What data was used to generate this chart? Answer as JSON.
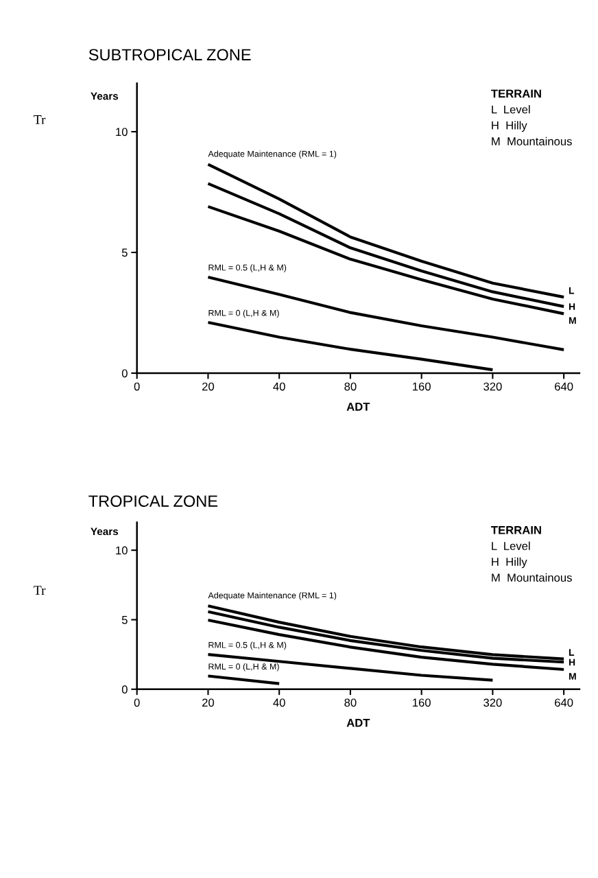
{
  "chart_data": [
    {
      "type": "line",
      "title": "SUBTROPICAL ZONE",
      "xlabel": "ADT",
      "ylabel": "Tr",
      "annotations": [
        "Years",
        "TERRAIN",
        "L  Level",
        "H  Hilly",
        "M  Mountainous",
        {
          "text": "Adequate Maintenance (RML = 1)",
          "x": "20",
          "y": 8.65
        }
      ],
      "categories": [
        "0",
        "20",
        "40",
        "80",
        "160",
        "320",
        "640"
      ],
      "ylim": [
        0,
        12
      ],
      "yticks": [
        0,
        5,
        10
      ],
      "grid": false,
      "legend": false,
      "marker": "none",
      "line_style": "solid",
      "series": [
        {
          "name": "L",
          "color": "#000000",
          "values": [
            null,
            8.65,
            7.21,
            5.64,
            4.64,
            3.73,
            3.15
          ]
        },
        {
          "name": "H",
          "color": "#000000",
          "values": [
            null,
            7.85,
            6.6,
            5.19,
            4.23,
            3.37,
            2.76
          ]
        },
        {
          "name": "M",
          "color": "#000000",
          "values": [
            null,
            6.9,
            5.88,
            4.72,
            3.87,
            3.07,
            2.46
          ]
        },
        {
          "name": "RML = 0.5 (L,H & M)",
          "color": "#000000",
          "values": [
            null,
            3.98,
            3.26,
            2.51,
            1.96,
            1.49,
            0.97
          ]
        },
        {
          "name": "RML = 0 (L,H & M)",
          "color": "#000000",
          "values": [
            null,
            2.1,
            1.49,
            0.99,
            0.58,
            0.14,
            null
          ]
        }
      ]
    },
    {
      "type": "line",
      "title": "TROPICAL ZONE",
      "xlabel": "ADT",
      "ylabel": "Tr",
      "annotations": [
        "Years",
        "TERRAIN",
        "L  Level",
        "H  Hilly",
        "M  Mountainous",
        {
          "text": "Adequate Maintenance (RML = 1)",
          "x": "20",
          "y": 6.0
        }
      ],
      "categories": [
        "0",
        "20",
        "40",
        "80",
        "160",
        "320",
        "640"
      ],
      "ylim": [
        0,
        12
      ],
      "yticks": [
        0,
        5,
        10
      ],
      "grid": false,
      "legend": false,
      "marker": "none",
      "line_style": "solid",
      "series": [
        {
          "name": "L",
          "color": "#000000",
          "values": [
            null,
            6.0,
            4.82,
            3.8,
            3.04,
            2.49,
            2.18
          ]
        },
        {
          "name": "H",
          "color": "#000000",
          "values": [
            null,
            5.58,
            4.46,
            3.5,
            2.79,
            2.23,
            1.95
          ]
        },
        {
          "name": "M",
          "color": "#000000",
          "values": [
            null,
            4.97,
            3.93,
            3.03,
            2.3,
            1.8,
            1.42
          ]
        },
        {
          "name": "RML = 0.5 (L,H & M)",
          "color": "#000000",
          "values": [
            null,
            2.5,
            2.0,
            1.5,
            1.0,
            0.65,
            null
          ]
        },
        {
          "name": "RML = 0 (L,H & M)",
          "color": "#000000",
          "values": [
            null,
            0.95,
            0.4,
            null,
            null,
            null,
            null
          ]
        }
      ]
    }
  ]
}
